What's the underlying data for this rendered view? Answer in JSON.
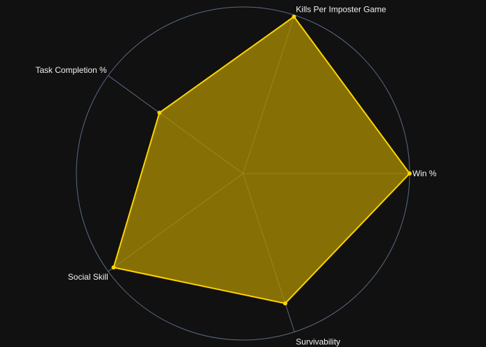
{
  "chart_data": {
    "type": "radar",
    "categories": [
      "Win %",
      "Kills Per Imposter Game",
      "Task Completion %",
      "Social Skill",
      "Survivability"
    ],
    "series": [
      {
        "values": [
          1.0,
          0.99,
          0.62,
          0.96,
          0.82
        ]
      }
    ],
    "range": [
      0,
      1
    ],
    "grid": true,
    "legend": "none",
    "colors": {
      "background": "#111111",
      "outer_circle": "#5a6b85",
      "spokes": "#5a6b85",
      "series_line": "#ffd400",
      "series_fill": "#8a7406"
    }
  }
}
